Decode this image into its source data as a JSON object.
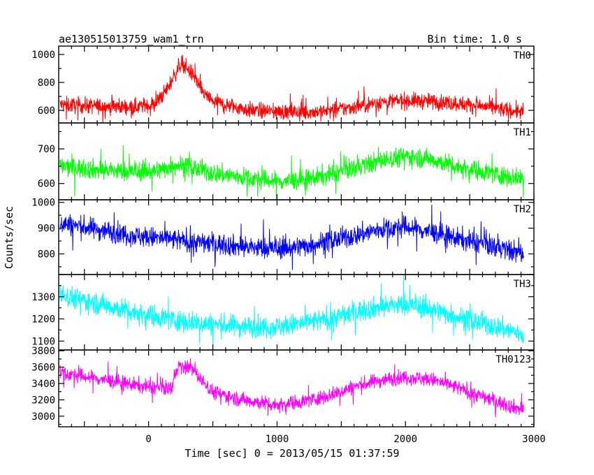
{
  "header": {
    "title": "ae130515013759_wam1_trn",
    "bin_time": "Bin time: 1.0 s"
  },
  "chart_data": {
    "type": "line",
    "xlabel": "Time [sec] 0 = 2013/05/15 01:37:59",
    "ylabel": "Counts/sec",
    "xlim": [
      -700,
      3000
    ],
    "x_ticks": [
      0,
      1000,
      2000,
      3000
    ],
    "x_range_data": [
      -690,
      2920
    ],
    "panels": [
      {
        "name": "TH0",
        "color": "#ff0000",
        "ylim": [
          510,
          1060
        ],
        "y_ticks": [
          600,
          800,
          1000
        ],
        "noise": 45,
        "points": [
          [
            -690,
            640
          ],
          [
            -400,
            630
          ],
          [
            -100,
            625
          ],
          [
            50,
            645
          ],
          [
            100,
            700
          ],
          [
            150,
            760
          ],
          [
            200,
            850
          ],
          [
            240,
            920
          ],
          [
            270,
            940
          ],
          [
            300,
            900
          ],
          [
            350,
            850
          ],
          [
            400,
            760
          ],
          [
            450,
            700
          ],
          [
            500,
            665
          ],
          [
            600,
            640
          ],
          [
            800,
            600
          ],
          [
            1000,
            590
          ],
          [
            1200,
            585
          ],
          [
            1400,
            595
          ],
          [
            1600,
            625
          ],
          [
            1800,
            660
          ],
          [
            2000,
            670
          ],
          [
            2200,
            665
          ],
          [
            2400,
            650
          ],
          [
            2600,
            630
          ],
          [
            2800,
            600
          ],
          [
            2920,
            590
          ]
        ]
      },
      {
        "name": "TH1",
        "color": "#00ff00",
        "ylim": [
          553,
          775
        ],
        "y_ticks": [
          600,
          700
        ],
        "noise": 22,
        "points": [
          [
            -690,
            650
          ],
          [
            -400,
            640
          ],
          [
            -100,
            633
          ],
          [
            100,
            640
          ],
          [
            200,
            655
          ],
          [
            300,
            650
          ],
          [
            500,
            630
          ],
          [
            800,
            615
          ],
          [
            1000,
            606
          ],
          [
            1200,
            610
          ],
          [
            1400,
            625
          ],
          [
            1600,
            645
          ],
          [
            1800,
            665
          ],
          [
            2000,
            680
          ],
          [
            2200,
            670
          ],
          [
            2400,
            650
          ],
          [
            2600,
            635
          ],
          [
            2800,
            620
          ],
          [
            2920,
            615
          ]
        ]
      },
      {
        "name": "TH2",
        "color": "#0000ff",
        "ylim": [
          720,
          1010
        ],
        "y_ticks": [
          800,
          900,
          1000
        ],
        "noise": 32,
        "points": [
          [
            -690,
            920
          ],
          [
            -400,
            895
          ],
          [
            -100,
            870
          ],
          [
            200,
            855
          ],
          [
            500,
            840
          ],
          [
            800,
            825
          ],
          [
            1000,
            820
          ],
          [
            1200,
            830
          ],
          [
            1400,
            850
          ],
          [
            1600,
            870
          ],
          [
            1800,
            895
          ],
          [
            2000,
            905
          ],
          [
            2200,
            885
          ],
          [
            2400,
            860
          ],
          [
            2600,
            840
          ],
          [
            2800,
            815
          ],
          [
            2920,
            800
          ]
        ]
      },
      {
        "name": "TH3",
        "color": "#00ffff",
        "ylim": [
          1060,
          1400
        ],
        "y_ticks": [
          1100,
          1200,
          1300
        ],
        "noise": 38,
        "points": [
          [
            -690,
            1310
          ],
          [
            -400,
            1270
          ],
          [
            -100,
            1230
          ],
          [
            200,
            1195
          ],
          [
            500,
            1175
          ],
          [
            800,
            1165
          ],
          [
            1000,
            1165
          ],
          [
            1200,
            1180
          ],
          [
            1400,
            1200
          ],
          [
            1600,
            1230
          ],
          [
            1800,
            1255
          ],
          [
            2000,
            1265
          ],
          [
            2200,
            1245
          ],
          [
            2400,
            1210
          ],
          [
            2600,
            1180
          ],
          [
            2800,
            1150
          ],
          [
            2920,
            1130
          ]
        ]
      },
      {
        "name": "TH0123",
        "color": "#ff00ff",
        "ylim": [
          2870,
          3810
        ],
        "y_ticks": [
          3000,
          3200,
          3400,
          3600,
          3800
        ],
        "noise": 70,
        "points": [
          [
            -690,
            3530
          ],
          [
            -400,
            3460
          ],
          [
            -100,
            3380
          ],
          [
            100,
            3340
          ],
          [
            180,
            3350
          ],
          [
            230,
            3620
          ],
          [
            270,
            3580
          ],
          [
            320,
            3620
          ],
          [
            400,
            3460
          ],
          [
            500,
            3300
          ],
          [
            700,
            3210
          ],
          [
            900,
            3160
          ],
          [
            1000,
            3140
          ],
          [
            1200,
            3180
          ],
          [
            1400,
            3250
          ],
          [
            1600,
            3360
          ],
          [
            1800,
            3440
          ],
          [
            2000,
            3480
          ],
          [
            2200,
            3450
          ],
          [
            2400,
            3350
          ],
          [
            2600,
            3240
          ],
          [
            2800,
            3130
          ],
          [
            2920,
            3080
          ]
        ]
      }
    ]
  }
}
